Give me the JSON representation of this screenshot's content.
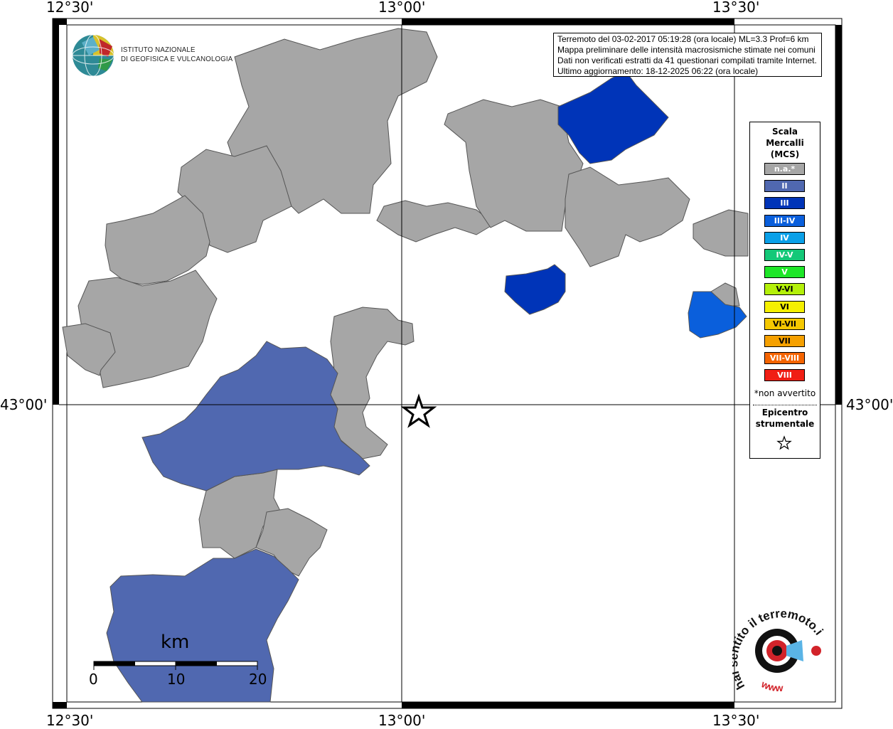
{
  "axes": {
    "top": [
      "12°30'",
      "13°00'",
      "13°30'"
    ],
    "bottom": [
      "12°30'",
      "13°00'",
      "13°30'"
    ],
    "left": "43°00'",
    "right": "43°00'"
  },
  "info": {
    "line1": "Terremoto del 03-02-2017 05:19:28 (ora locale) ML=3.3 Prof=6 km",
    "line2": "Mappa preliminare delle intensità macrosismiche stimate nei comuni",
    "line3": "Dati non verificati estratti da 41 questionari compilati tramite Internet.",
    "line4": "Ultimo aggiornamento: 18-12-2025 06:22 (ora locale)"
  },
  "logo": {
    "line1": "ISTITUTO NAZIONALE",
    "line2": "DI GEOFISICA E VULCANOLOGIA"
  },
  "legend": {
    "title1": "Scala",
    "title2": "Mercalli",
    "title3": "(MCS)",
    "classes": [
      {
        "label": "n.a.*",
        "color": "#a6a6a6"
      },
      {
        "label": "II",
        "color": "#5068b0"
      },
      {
        "label": "III",
        "color": "#0034b8"
      },
      {
        "label": "III-IV",
        "color": "#0a5fdc"
      },
      {
        "label": "IV",
        "color": "#0aa0e8"
      },
      {
        "label": "IV-V",
        "color": "#14c878"
      },
      {
        "label": "V",
        "color": "#1ee628"
      },
      {
        "label": "V-VI",
        "color": "#b4f00a"
      },
      {
        "label": "VI",
        "color": "#f5f000"
      },
      {
        "label": "VI-VII",
        "color": "#f5c800"
      },
      {
        "label": "VII",
        "color": "#f5a000"
      },
      {
        "label": "VII-VIII",
        "color": "#f56400"
      },
      {
        "label": "VIII",
        "color": "#f01e14"
      }
    ],
    "note": "*non avvertito",
    "epi1": "Epicentro",
    "epi2": "strumentale"
  },
  "scalebar": {
    "unit": "km",
    "ticks": [
      "0",
      "10",
      "20"
    ]
  },
  "watermark": {
    "text": "hai sentito il terremoto.it",
    "url": "www"
  },
  "colors": {
    "na": "#a6a6a6",
    "II": "#5068b0",
    "III": "#0034b8",
    "IIIIV": "#0a5fdc"
  }
}
